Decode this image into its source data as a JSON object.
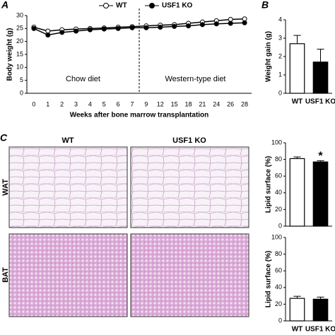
{
  "figure": {
    "panel_labels": [
      "A",
      "B",
      "C"
    ],
    "histology": {
      "columns": [
        "WT",
        "USF1 KO"
      ],
      "rows": [
        "WAT",
        "BAT"
      ]
    }
  },
  "chart_data": [
    {
      "type": "line",
      "y_label": "Body weight (g)",
      "x_label": "Weeks after bone marrow transplantation",
      "categories": [
        "0",
        "1",
        "2",
        "3",
        "4",
        "5",
        "6",
        "7",
        "9",
        "12",
        "15",
        "18",
        "21",
        "24",
        "26",
        "28"
      ],
      "series": [
        {
          "name": "WT",
          "color": "#ffffff",
          "values": [
            25.5,
            24,
            24.5,
            24.8,
            25,
            25.2,
            25.5,
            25.7,
            26,
            26.3,
            26.5,
            27,
            27.5,
            28,
            28.5,
            28.7
          ],
          "errors": [
            0.6,
            0.6,
            0.6,
            0.6,
            0.6,
            0.6,
            0.6,
            0.6,
            0.6,
            0.6,
            0.7,
            0.7,
            0.8,
            0.8,
            0.9,
            0.9
          ]
        },
        {
          "name": "USF1 KO",
          "color": "#000000",
          "values": [
            25,
            22.5,
            23.5,
            24,
            24.5,
            24.8,
            25,
            25.3,
            25.3,
            25.5,
            25.8,
            26,
            26.5,
            26.8,
            27,
            27.2
          ],
          "errors": [
            0.5,
            0.5,
            0.5,
            0.5,
            0.5,
            0.5,
            0.5,
            0.5,
            0.5,
            0.5,
            0.6,
            0.6,
            0.6,
            0.7,
            0.7,
            0.7
          ]
        }
      ],
      "ylim": [
        0,
        30
      ],
      "yticks": [
        0,
        5,
        10,
        15,
        20,
        25,
        30
      ],
      "annotations": [
        "Chow diet",
        "Western-type diet"
      ]
    },
    {
      "type": "bar",
      "y_label": "Weight gain (g)",
      "categories": [
        "WT",
        "USF1 KO"
      ],
      "values": [
        2.7,
        1.7
      ],
      "errors": [
        0.45,
        0.7
      ],
      "colors": [
        "#ffffff",
        "#000000"
      ],
      "ylim": [
        0,
        4
      ],
      "yticks": [
        0,
        1,
        2,
        3,
        4
      ]
    },
    {
      "type": "bar",
      "y_label": "Lipid surface (%)",
      "values": [
        81,
        77
      ],
      "errors": [
        2,
        1.5
      ],
      "colors": [
        "#ffffff",
        "#000000"
      ],
      "ylim": [
        0,
        100
      ],
      "yticks": [
        0,
        20,
        40,
        60,
        80,
        100
      ],
      "annotations": [
        "*"
      ]
    },
    {
      "type": "bar",
      "y_label": "Lipid surface (%)",
      "categories": [
        "WT",
        "USF1 KO"
      ],
      "values": [
        27,
        26
      ],
      "errors": [
        2.5,
        2.5
      ],
      "colors": [
        "#ffffff",
        "#000000"
      ],
      "ylim": [
        0,
        100
      ],
      "yticks": [
        0,
        20,
        40,
        60,
        80,
        100
      ]
    }
  ]
}
